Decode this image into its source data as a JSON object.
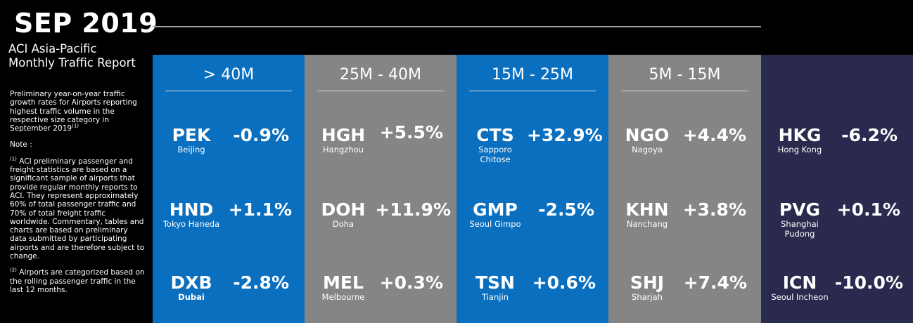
{
  "header": {
    "month": "SEP 2019",
    "report_title_line1": "ACI Asia-Pacific",
    "report_title_line2": "Monthly Traffic Report"
  },
  "sidebar": {
    "intro": "Preliminary year-on-year traffic growth rates for Airports reporting highest traffic volume in the respective size category in September 2019",
    "intro_sup": "(1)",
    "note_label": "Note :",
    "note1_sup": "(1)",
    "note1": " ACI preliminary passenger and freight statistics are based on a significant sample of airports that provide regular monthly reports to ACI. They represent approximately 60% of total passenger traffic and 70% of total freight traffic worldwide. Commentary, tables and charts are based on preliminary data submitted by participating airports and are therefore subject to change.",
    "note2_sup": "(2)",
    "note2": " Airports are categorized based on the rolling passenger traffic in the last 12 months."
  },
  "colors": {
    "blue": "#0a6fbf",
    "gray": "#858585",
    "navy": "#2a2a4e"
  },
  "columns": [
    {
      "header": "> 40M",
      "airports": [
        {
          "code": "PEK",
          "city": "Beijing",
          "change": "-0.9%"
        },
        {
          "code": "HND",
          "city": "Tokyo Haneda",
          "change": "+1.1%"
        },
        {
          "code": "DXB",
          "city": "Dubai",
          "change": "-2.8%"
        }
      ]
    },
    {
      "header": "25M - 40M",
      "airports": [
        {
          "code": "HGH",
          "city": "Hangzhou",
          "change": "+5.5%"
        },
        {
          "code": "DOH",
          "city": "Doha",
          "change": "+11.9%"
        },
        {
          "code": "MEL",
          "city": "Melbourne",
          "change": "+0.3%"
        }
      ]
    },
    {
      "header": "15M - 25M",
      "airports": [
        {
          "code": "CTS",
          "city": "Sapporo Chitose",
          "change": "+32.9%"
        },
        {
          "code": "GMP",
          "city": "Seoul Gimpo",
          "change": "-2.5%"
        },
        {
          "code": "TSN",
          "city": "Tianjin",
          "change": "+0.6%"
        }
      ]
    },
    {
      "header": "5M - 15M",
      "airports": [
        {
          "code": "NGO",
          "city": "Nagoya",
          "change": "+4.4%"
        },
        {
          "code": "KHN",
          "city": "Nanchang",
          "change": "+3.8%"
        },
        {
          "code": "SHJ",
          "city": "Sharjah",
          "change": "+7.4%"
        }
      ]
    },
    {
      "header": "",
      "airports": [
        {
          "code": "HKG",
          "city": "Hong Kong",
          "change": "-6.2%"
        },
        {
          "code": "PVG",
          "city": "Shanghai Pudong",
          "change": "+0.1%"
        },
        {
          "code": "ICN",
          "city": "Seoul Incheon",
          "change": "-10.0%"
        }
      ]
    }
  ]
}
